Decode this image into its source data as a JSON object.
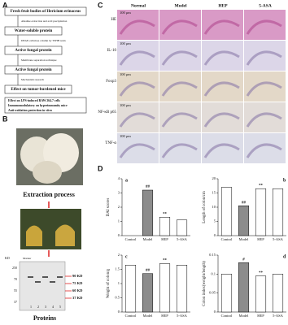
{
  "panels": {
    "a": "A",
    "b": "B",
    "c": "C",
    "d": "D"
  },
  "flow": {
    "boxes": [
      "Fresh fruit bodies of Hericium erinaceus",
      "Water-soluble protein",
      "Active fungal protein",
      "Active fungal protein",
      "Effect on tumor-burdened mice"
    ],
    "notes": [
      "Alkaline extraction and acid precipitation",
      "DEAE-cellulose column by TSHH resin",
      "Membrane separation technique",
      "Mechanism research"
    ],
    "bullets": [
      "Effect on LPS-induced RAW 264.7 cells",
      "Immunomodulatory on hyperimmunity mice",
      "Anti-oxidation protection in vitro"
    ]
  },
  "extraction": {
    "step": "Extraction process",
    "result": "Proteins"
  },
  "gel": {
    "unit": "KD",
    "marker": "Marker",
    "ladder": [
      "250",
      "70",
      "55",
      "37"
    ],
    "lanes": [
      "1",
      "2",
      "3",
      "4",
      "5"
    ],
    "bands": [
      "90 KD",
      "75 KD",
      "60 KD",
      "37 KD"
    ]
  },
  "histology": {
    "columns": [
      "Normal",
      "Model",
      "HEP",
      "5-ASA"
    ],
    "rows": [
      "HE",
      "IL-10",
      "Foxp3",
      "NF-κB p65",
      "TNF-α"
    ],
    "scale": "100 μm"
  },
  "chart_data": [
    {
      "type": "bar",
      "letter": "a",
      "ylabel": "DAI scores",
      "categories": [
        "Control",
        "Model",
        "HEP",
        "5-ASA"
      ],
      "values": [
        0,
        3.2,
        1.3,
        1.1
      ],
      "colors": [
        "#ffffff",
        "#8c8c8c",
        "#ffffff",
        "#ffffff"
      ],
      "annotations": [
        null,
        "##",
        "**",
        null
      ],
      "ylim": [
        0,
        4
      ],
      "yticks": [
        0,
        1,
        2,
        3,
        4
      ]
    },
    {
      "type": "bar",
      "letter": "b",
      "ylabel": "Length of colon/cm",
      "categories": [
        "Control",
        "Model",
        "HEP",
        "5-ASA"
      ],
      "values": [
        17,
        10.5,
        16.5,
        16.5
      ],
      "colors": [
        "#ffffff",
        "#8c8c8c",
        "#ffffff",
        "#ffffff"
      ],
      "annotations": [
        null,
        "##",
        "**",
        null
      ],
      "ylim": [
        0,
        20
      ],
      "yticks": [
        0,
        5,
        10,
        15,
        20
      ]
    },
    {
      "type": "bar",
      "letter": "c",
      "ylabel": "Weight of colon/g",
      "categories": [
        "Control",
        "Model",
        "HEP",
        "5-ASA"
      ],
      "values": [
        1.65,
        1.35,
        1.7,
        1.65
      ],
      "colors": [
        "#ffffff",
        "#8c8c8c",
        "#ffffff",
        "#ffffff"
      ],
      "annotations": [
        null,
        "##",
        "**",
        null
      ],
      "ylim": [
        0,
        2
      ],
      "yticks": [
        0,
        0.5,
        1,
        1.5,
        2
      ]
    },
    {
      "type": "bar",
      "letter": "d",
      "ylabel": "Colon index(weight/length)",
      "categories": [
        "Control",
        "Model",
        "HEP",
        "5-ASA"
      ],
      "values": [
        0.1,
        0.13,
        0.095,
        0.1
      ],
      "colors": [
        "#ffffff",
        "#8c8c8c",
        "#ffffff",
        "#ffffff"
      ],
      "annotations": [
        null,
        "#",
        "**",
        null
      ],
      "ylim": [
        0,
        0.15
      ],
      "yticks": [
        0,
        0.05,
        0.1,
        0.15
      ]
    }
  ]
}
